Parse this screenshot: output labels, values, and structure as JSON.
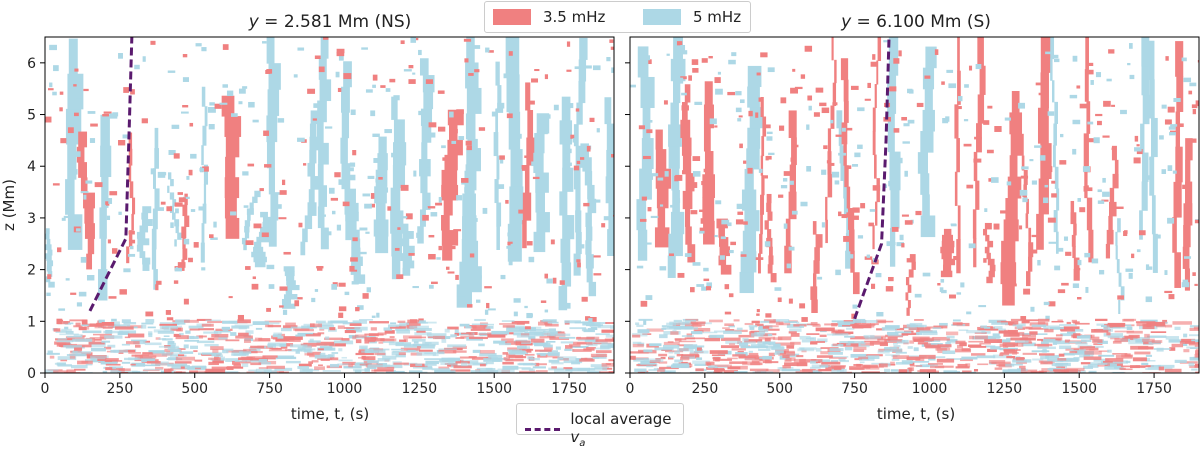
{
  "chart_data": {
    "type": "heatmap",
    "legend_top": [
      {
        "label": "3.5 mHz",
        "color": "#f08080"
      },
      {
        "label": "5 mHz",
        "color": "#add8e6"
      }
    ],
    "legend_bottom": {
      "label": "local average ",
      "math": "v",
      "sub": "a",
      "color": "#5a1a6e"
    },
    "ylabel_panel_left": "z (Mm)",
    "panels": [
      {
        "title_italic": "y",
        "title_rest": " = 2.581 Mm (NS)",
        "xlabel": "time, t, (s)",
        "xlim": [
          0,
          1900
        ],
        "ylim": [
          0,
          6.5
        ],
        "xticks": [
          0,
          250,
          500,
          750,
          1000,
          1250,
          1500,
          1750
        ],
        "yticks": [
          0,
          1,
          2,
          3,
          4,
          5,
          6
        ],
        "va_line": {
          "t": [
            150,
            270,
            280,
            290
          ],
          "z": [
            1.2,
            2.6,
            4.5,
            6.5
          ]
        },
        "seed": 11,
        "red_fraction": 0.35,
        "blue_fraction": 0.65
      },
      {
        "title_italic": "y",
        "title_rest": " = 6.100 Mm (S)",
        "xlabel": "time, t, (s)",
        "xlim": [
          0,
          1900
        ],
        "ylim": [
          0,
          6.5
        ],
        "xticks": [
          0,
          250,
          500,
          750,
          1000,
          1250,
          1500,
          1750
        ],
        "yticks": [
          0,
          1,
          2,
          3,
          4,
          5,
          6
        ],
        "va_line": {
          "t": [
            750,
            840,
            855,
            865
          ],
          "z": [
            1.05,
            2.5,
            4.5,
            6.5
          ]
        },
        "seed": 29,
        "red_fraction": 0.7,
        "blue_fraction": 0.3
      }
    ]
  }
}
